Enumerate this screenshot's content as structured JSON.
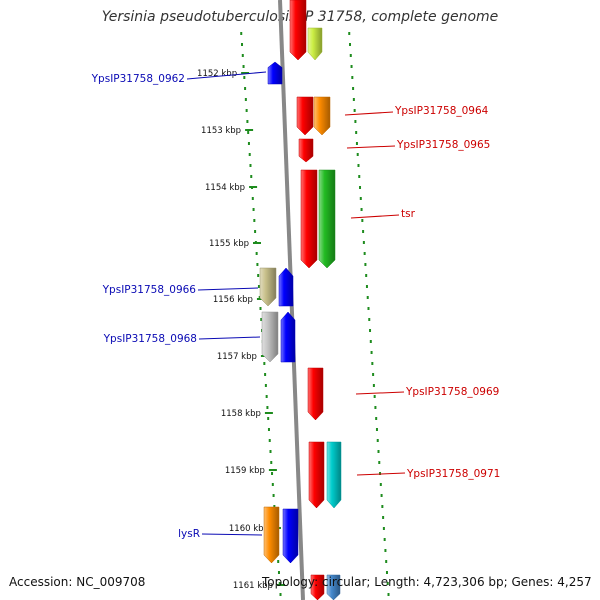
{
  "title": "Yersinia pseudotuberculosis IP 31758, complete genome",
  "accession": "Accession: NC_009708",
  "summary": "Topology: circular; Length: 4,723,306 bp; Genes: 4,257",
  "colors": {
    "backbone": "#888888",
    "tick": "#1e8c1e",
    "label_left": "#0a0ab4",
    "label_right": "#cc0000"
  },
  "scale": {
    "unit": "kbp",
    "ticks": [
      "1152 kbp",
      "1153 kbp",
      "1154 kbp",
      "1155 kbp",
      "1156 kbp",
      "1157 kbp",
      "1158 kbp",
      "1159 kbp",
      "1160 kbp",
      "1161 kbp"
    ]
  },
  "labels": [
    {
      "text": "YpsIP31758_0962",
      "side": "left"
    },
    {
      "text": "YpsIP31758_0964",
      "side": "right"
    },
    {
      "text": "YpsIP31758_0965",
      "side": "right"
    },
    {
      "text": "tsr",
      "side": "right"
    },
    {
      "text": "YpsIP31758_0966",
      "side": "left"
    },
    {
      "text": "YpsIP31758_0968",
      "side": "left"
    },
    {
      "text": "YpsIP31758_0969",
      "side": "right"
    },
    {
      "text": "YpsIP31758_0971",
      "side": "right"
    },
    {
      "text": "lysR",
      "side": "left"
    }
  ],
  "features": [
    {
      "color": "#ff0000",
      "dir": "rev"
    },
    {
      "color": "#ccee44",
      "dir": "rev"
    },
    {
      "color": "#0000ff",
      "dir": "fwd"
    },
    {
      "color": "#ff0000",
      "dir": "rev"
    },
    {
      "color": "#ff8c00",
      "dir": "rev"
    },
    {
      "color": "#ff0000",
      "dir": "rev"
    },
    {
      "color": "#ff0000",
      "dir": "rev"
    },
    {
      "color": "#22bb22",
      "dir": "rev"
    },
    {
      "color": "#c8c08a",
      "dir": "rev"
    },
    {
      "color": "#0000ff",
      "dir": "fwd"
    },
    {
      "color": "#c4c4c4",
      "dir": "rev"
    },
    {
      "color": "#0000ff",
      "dir": "fwd"
    },
    {
      "color": "#ff0000",
      "dir": "rev"
    },
    {
      "color": "#ff0000",
      "dir": "rev"
    },
    {
      "color": "#00cccc",
      "dir": "rev"
    },
    {
      "color": "#ff8c00",
      "dir": "rev"
    },
    {
      "color": "#0000ff",
      "dir": "rev"
    },
    {
      "color": "#ff0000",
      "dir": "rev"
    },
    {
      "color": "#4488cc",
      "dir": "rev"
    }
  ]
}
